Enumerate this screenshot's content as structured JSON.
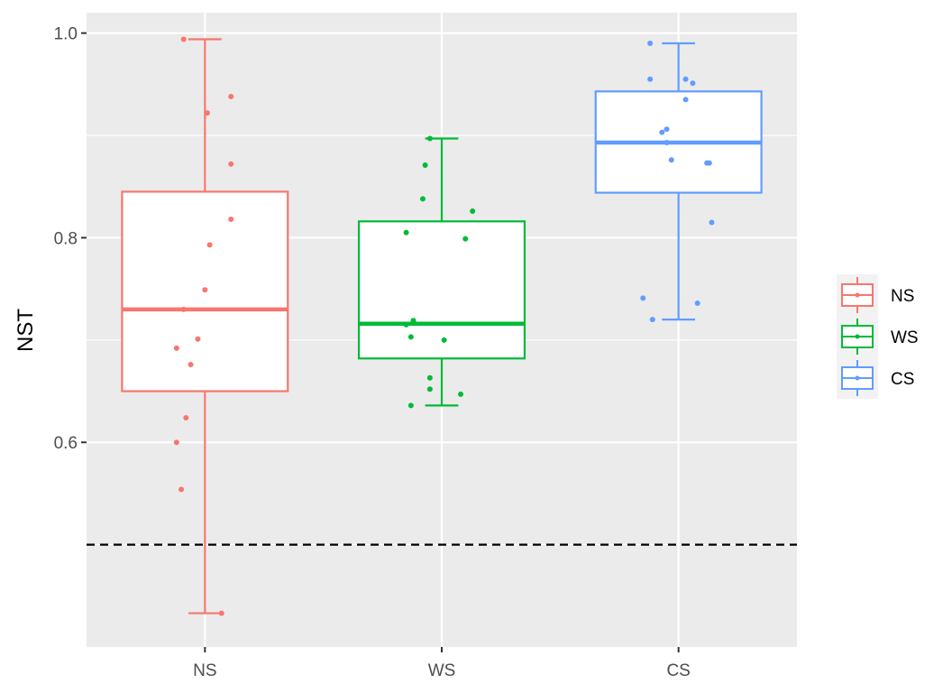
{
  "chart_data": {
    "type": "boxplot",
    "title": "",
    "xlabel": "",
    "ylabel": "NST",
    "categories": [
      "NS",
      "WS",
      "CS"
    ],
    "ylim": [
      0.4,
      1.02
    ],
    "y_ticks": [
      0.6,
      0.8,
      1.0
    ],
    "y_tick_labels": [
      "0.6",
      "0.8",
      "1.0"
    ],
    "reference_line": {
      "y": 0.5,
      "style": "dashed",
      "color": "#000000"
    },
    "grid": true,
    "legend": {
      "position": "right",
      "entries": [
        "NS",
        "WS",
        "CS"
      ]
    },
    "series": [
      {
        "name": "NS",
        "color": "#F8766D",
        "box": {
          "lower_whisker": 0.433,
          "q1": 0.65,
          "median": 0.73,
          "q3": 0.845,
          "upper_whisker": 0.994
        },
        "points": [
          {
            "x": -0.09,
            "y": 0.994
          },
          {
            "x": 0.11,
            "y": 0.938
          },
          {
            "x": 0.01,
            "y": 0.922
          },
          {
            "x": 0.11,
            "y": 0.872
          },
          {
            "x": 0.11,
            "y": 0.818
          },
          {
            "x": 0.02,
            "y": 0.793
          },
          {
            "x": 0.0,
            "y": 0.749
          },
          {
            "x": -0.09,
            "y": 0.73
          },
          {
            "x": -0.03,
            "y": 0.701
          },
          {
            "x": -0.12,
            "y": 0.692
          },
          {
            "x": -0.06,
            "y": 0.676
          },
          {
            "x": -0.08,
            "y": 0.624
          },
          {
            "x": -0.12,
            "y": 0.6
          },
          {
            "x": -0.1,
            "y": 0.554
          },
          {
            "x": 0.07,
            "y": 0.433
          }
        ]
      },
      {
        "name": "WS",
        "color": "#00BA38",
        "box": {
          "lower_whisker": 0.636,
          "q1": 0.682,
          "median": 0.716,
          "q3": 0.816,
          "upper_whisker": 0.897
        },
        "points": [
          {
            "x": -0.05,
            "y": 0.897
          },
          {
            "x": -0.07,
            "y": 0.871
          },
          {
            "x": -0.08,
            "y": 0.838
          },
          {
            "x": 0.13,
            "y": 0.826
          },
          {
            "x": -0.15,
            "y": 0.805
          },
          {
            "x": 0.1,
            "y": 0.799
          },
          {
            "x": -0.12,
            "y": 0.719
          },
          {
            "x": -0.15,
            "y": 0.715
          },
          {
            "x": -0.13,
            "y": 0.703
          },
          {
            "x": 0.01,
            "y": 0.7
          },
          {
            "x": -0.05,
            "y": 0.663
          },
          {
            "x": 0.08,
            "y": 0.647
          },
          {
            "x": -0.05,
            "y": 0.652
          },
          {
            "x": -0.13,
            "y": 0.636
          }
        ]
      },
      {
        "name": "CS",
        "color": "#619CFF",
        "box": {
          "lower_whisker": 0.72,
          "q1": 0.844,
          "median": 0.893,
          "q3": 0.943,
          "upper_whisker": 0.99
        },
        "points": [
          {
            "x": -0.12,
            "y": 0.99
          },
          {
            "x": -0.12,
            "y": 0.955
          },
          {
            "x": 0.03,
            "y": 0.955
          },
          {
            "x": 0.06,
            "y": 0.951
          },
          {
            "x": 0.03,
            "y": 0.935
          },
          {
            "x": -0.05,
            "y": 0.906
          },
          {
            "x": -0.07,
            "y": 0.903
          },
          {
            "x": -0.05,
            "y": 0.893
          },
          {
            "x": -0.03,
            "y": 0.876
          },
          {
            "x": 0.12,
            "y": 0.873
          },
          {
            "x": 0.13,
            "y": 0.873
          },
          {
            "x": 0.14,
            "y": 0.815
          },
          {
            "x": -0.15,
            "y": 0.741
          },
          {
            "x": 0.08,
            "y": 0.736
          },
          {
            "x": -0.11,
            "y": 0.72
          }
        ]
      }
    ]
  }
}
